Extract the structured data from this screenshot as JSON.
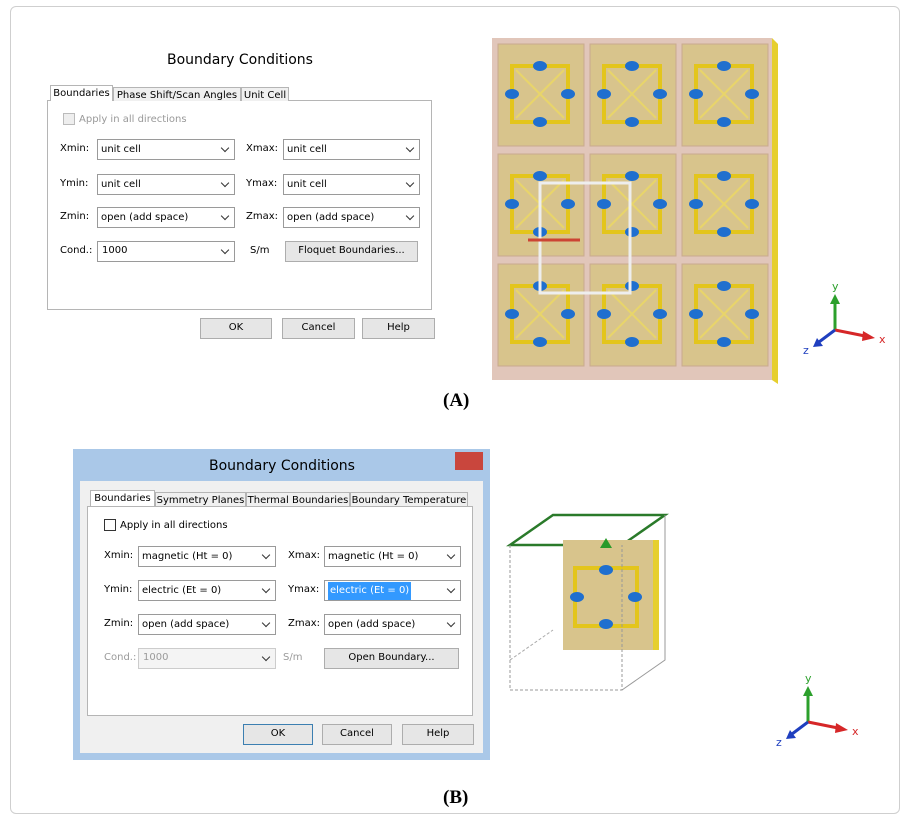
{
  "panels": [
    {
      "caption": "(A)",
      "dialog": {
        "title": "Boundary Conditions",
        "tabs": [
          "Boundaries",
          "Phase Shift/Scan Angles",
          "Unit Cell"
        ],
        "apply_all": "Apply in all directions",
        "fields": [
          {
            "label": "Xmin:",
            "value": "unit cell"
          },
          {
            "label": "Xmax:",
            "value": "unit cell"
          },
          {
            "label": "Ymin:",
            "value": "unit cell"
          },
          {
            "label": "Ymax:",
            "value": "unit cell"
          },
          {
            "label": "Zmin:",
            "value": "open (add space)"
          },
          {
            "label": "Zmax:",
            "value": "open (add space)"
          }
        ],
        "cond_label": "Cond.:",
        "cond_value": "1000",
        "cond_unit": "S/m",
        "side_button": "Floquet Boundaries...",
        "buttons": [
          "OK",
          "Cancel",
          "Help"
        ]
      },
      "axes": {
        "y": "y",
        "z": "z",
        "x": "x"
      }
    },
    {
      "caption": "(B)",
      "dialog": {
        "title": "Boundary Conditions",
        "tabs": [
          "Boundaries",
          "Symmetry Planes",
          "Thermal Boundaries",
          "Boundary Temperature"
        ],
        "apply_all": "Apply in all directions",
        "fields": [
          {
            "label": "Xmin:",
            "value": "magnetic (Ht = 0)"
          },
          {
            "label": "Xmax:",
            "value": "magnetic (Ht = 0)"
          },
          {
            "label": "Ymin:",
            "value": "electric (Et = 0)"
          },
          {
            "label": "Ymax:",
            "value": "electric (Et = 0)"
          },
          {
            "label": "Zmin:",
            "value": "open (add space)"
          },
          {
            "label": "Zmax:",
            "value": "open (add space)"
          }
        ],
        "cond_label": "Cond.:",
        "cond_value": "1000",
        "cond_unit": "S/m",
        "side_button": "Open Boundary...",
        "buttons": [
          "OK",
          "Cancel",
          "Help"
        ]
      },
      "axes": {
        "y": "y",
        "z": "z",
        "x": "x"
      }
    }
  ]
}
